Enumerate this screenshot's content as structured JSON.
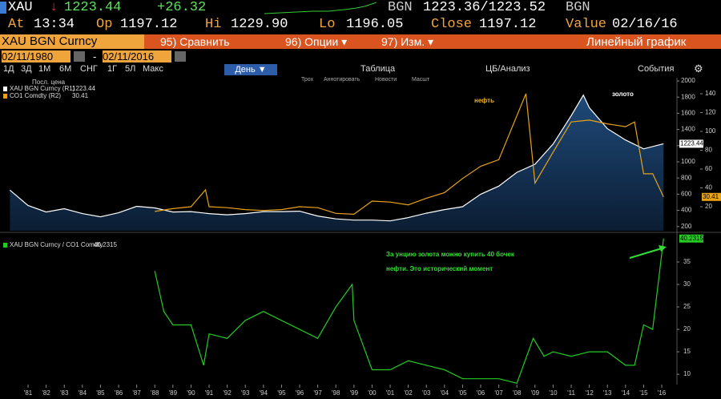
{
  "header": {
    "ticker": "XAU",
    "direction": "↓",
    "last": "1223.44",
    "change": "+26.32",
    "quote_label": "BGN",
    "bid_ask": "1223.36/1223.52",
    "quote_label2": "BGN",
    "stats": [
      {
        "label": "At",
        "value": "13:34"
      },
      {
        "label": "Op",
        "value": "1197.12"
      },
      {
        "label": "Hi",
        "value": "1229.90"
      },
      {
        "label": "Lo",
        "value": "1196.05"
      },
      {
        "label": "Close",
        "value": "1197.12"
      },
      {
        "label": "Value",
        "value": "02/16/16"
      }
    ]
  },
  "menu": {
    "security": "XAU BGN Curncy",
    "compare": "95) Сравнить",
    "options": "96) Опции ▾",
    "edit": "97) Изм. ▾",
    "chart_kind": "Линейный график"
  },
  "dates": {
    "start": "02/11/1980",
    "dash": "-",
    "end": "02/11/2016"
  },
  "toolbar": {
    "periods": [
      "1Д",
      "3Д",
      "1М",
      "6М",
      "СНГ",
      "1Г",
      "5Л",
      "Макс"
    ],
    "frequency": "День ▼",
    "table": "Таблица",
    "analysis": "ЦБ/Анализ",
    "events": "События",
    "gear": "⚙",
    "tools": [
      "Трох",
      "Аннотировать",
      "Новости",
      "Масшт"
    ]
  },
  "chart_data": [
    {
      "type": "line",
      "legend_title": "Посл. цена",
      "annotations": [
        "нефть",
        "золото"
      ],
      "xlim": [
        1979.45,
        2016.84
      ],
      "ylim": [
        148,
        2040
      ],
      "yticks": [
        200,
        400,
        600,
        800,
        1000,
        1200,
        1400,
        1600,
        1800,
        2000
      ],
      "y2lim": [
        -5.5,
        157
      ],
      "y2ticks": [
        20,
        40,
        60,
        80,
        100,
        120,
        140
      ],
      "series": [
        {
          "name": "XAU BGN Curncy (R1)",
          "color": "#ffffff",
          "x": [
            1980,
            1981,
            1982,
            1983,
            1984,
            1985,
            1986,
            1987,
            1988,
            1989,
            1990,
            1991,
            1992,
            1993,
            1994,
            1995,
            1996,
            1997,
            1998,
            1999,
            2000,
            2001,
            2002,
            2003,
            2004,
            2005,
            2006,
            2007,
            2008,
            2009,
            2010,
            2011,
            2011.67,
            2012,
            2013,
            2014,
            2015,
            2016.1
          ],
          "values": [
            650,
            460,
            380,
            420,
            360,
            320,
            370,
            450,
            430,
            380,
            385,
            360,
            345,
            360,
            385,
            385,
            390,
            330,
            295,
            280,
            280,
            270,
            310,
            365,
            410,
            445,
            600,
            700,
            870,
            970,
            1220,
            1570,
            1825,
            1670,
            1410,
            1270,
            1160,
            1223.44
          ]
        },
        {
          "name": "CO1 Comdty (R2)",
          "color": "#e8a317",
          "axis": "y2",
          "x": [
            1988,
            1989,
            1990,
            1990.8,
            1991,
            1992,
            1993,
            1994,
            1995,
            1996,
            1997,
            1998,
            1999,
            2000,
            2001,
            2002,
            2003,
            2004,
            2005,
            2006,
            2007,
            2008.5,
            2009,
            2010,
            2011,
            2012,
            2013,
            2014,
            2014.5,
            2015,
            2015.5,
            2016.1
          ],
          "values": [
            15,
            18,
            20,
            38,
            20,
            19,
            17,
            16,
            17,
            20,
            19,
            13,
            12,
            26,
            25,
            22,
            29,
            35,
            50,
            63,
            70,
            140,
            45,
            78,
            110,
            112,
            108,
            105,
            110,
            55,
            55,
            30.41
          ]
        }
      ]
    },
    {
      "type": "line",
      "xlim": [
        1979.45,
        2016.84
      ],
      "ylim": [
        7.7,
        41.25
      ],
      "yticks": [
        10,
        15,
        20,
        25,
        30,
        35
      ],
      "xticks": [
        {
          "value": 1981,
          "label": "'81"
        },
        {
          "value": 1982,
          "label": "'82"
        },
        {
          "value": 1983,
          "label": "'83"
        },
        {
          "value": 1984,
          "label": "'84"
        },
        {
          "value": 1985,
          "label": "'85"
        },
        {
          "value": 1986,
          "label": "'86"
        },
        {
          "value": 1987,
          "label": "'87"
        },
        {
          "value": 1988,
          "label": "'88"
        },
        {
          "value": 1989,
          "label": "'89"
        },
        {
          "value": 1990,
          "label": "'90"
        },
        {
          "value": 1991,
          "label": "'91"
        },
        {
          "value": 1992,
          "label": "'92"
        },
        {
          "value": 1993,
          "label": "'93"
        },
        {
          "value": 1994,
          "label": "'94"
        },
        {
          "value": 1995,
          "label": "'95"
        },
        {
          "value": 1996,
          "label": "'96"
        },
        {
          "value": 1997,
          "label": "'97"
        },
        {
          "value": 1998,
          "label": "'98"
        },
        {
          "value": 1999,
          "label": "'99"
        },
        {
          "value": 2000,
          "label": "'00"
        },
        {
          "value": 2001,
          "label": "'01"
        },
        {
          "value": 2002,
          "label": "'02"
        },
        {
          "value": 2003,
          "label": "'03"
        },
        {
          "value": 2004,
          "label": "'04"
        },
        {
          "value": 2005,
          "label": "'05"
        },
        {
          "value": 2006,
          "label": "'06"
        },
        {
          "value": 2007,
          "label": "'07"
        },
        {
          "value": 2008,
          "label": "'08"
        },
        {
          "value": 2009,
          "label": "'09"
        },
        {
          "value": 2010,
          "label": "'10"
        },
        {
          "value": 2011,
          "label": "'11"
        },
        {
          "value": 2012,
          "label": "'12"
        },
        {
          "value": 2013,
          "label": "'13"
        },
        {
          "value": 2014,
          "label": "'14"
        },
        {
          "value": 2015,
          "label": "'15"
        },
        {
          "value": 2016,
          "label": "'16"
        }
      ],
      "annotation": [
        "За унцию золота можно купить 40 бочек",
        "нефти. Это исторический момент"
      ],
      "series": [
        {
          "name": "XAU BGN Curncy / CO1 Comdty",
          "color": "#22cc22",
          "x": [
            1988,
            1988.5,
            1989,
            1990,
            1990.7,
            1991,
            1992,
            1993,
            1994,
            1995,
            1996,
            1997,
            1998,
            1998.9,
            1999,
            2000,
            2001,
            2002,
            2003,
            2004,
            2005,
            2006,
            2007,
            2008,
            2008.9,
            2009.5,
            2010,
            2011,
            2012,
            2013,
            2014,
            2014.5,
            2015,
            2015.5,
            2016.1
          ],
          "values": [
            33,
            24,
            21,
            21,
            12,
            19,
            18,
            22,
            24,
            22,
            20,
            18,
            25,
            30,
            22,
            11,
            11,
            13,
            12,
            11,
            9,
            9,
            9,
            8,
            18,
            14,
            15,
            14,
            15,
            15,
            12,
            12,
            21,
            20,
            40.2315
          ]
        }
      ]
    }
  ]
}
